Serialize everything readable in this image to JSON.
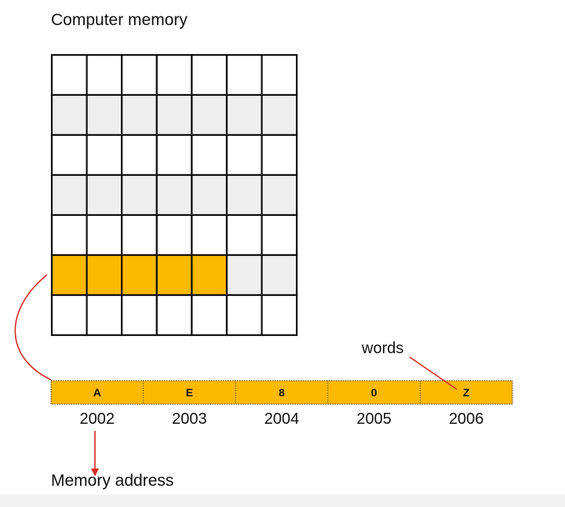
{
  "title": "Computer memory",
  "words_label": "words",
  "address_caption": "Memory address",
  "memory_grid": {
    "rows": 7,
    "cols": 7,
    "striped_rows": [
      1,
      3,
      5
    ],
    "highlighted_row": 5,
    "highlighted_cells": 5
  },
  "words": [
    {
      "value": "A",
      "address": "2002"
    },
    {
      "value": "E",
      "address": "2003"
    },
    {
      "value": "8",
      "address": "2004"
    },
    {
      "value": "0",
      "address": "2005"
    },
    {
      "value": "Z",
      "address": "2006"
    }
  ],
  "colors": {
    "cell_white": "#ffffff",
    "cell_gray": "#efefef",
    "highlight": "#fbb900",
    "grid_line": "#111111",
    "arrow": "#d42b1e"
  }
}
